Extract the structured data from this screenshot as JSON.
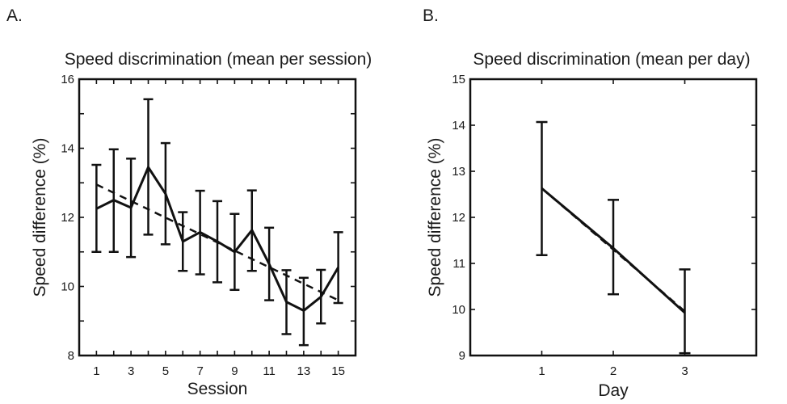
{
  "chart_data": [
    {
      "panel_label": "A.",
      "type": "line",
      "title": "Speed discrimination (mean per session)",
      "xlabel": "Session",
      "ylabel": "Speed difference (%)",
      "xlim": [
        0,
        16
      ],
      "ylim": [
        8,
        16
      ],
      "xticks": [
        1,
        2,
        3,
        4,
        5,
        6,
        7,
        8,
        9,
        10,
        11,
        12,
        13,
        14,
        15
      ],
      "xtick_labels": [
        "1",
        "",
        "3",
        "",
        "5",
        "",
        "7",
        "",
        "9",
        "",
        "11",
        "",
        "13",
        "",
        "15"
      ],
      "yticks": [
        8,
        9,
        10,
        11,
        12,
        13,
        14,
        15,
        16
      ],
      "ytick_labels": [
        "8",
        "",
        "10",
        "",
        "12",
        "",
        "14",
        "",
        "16"
      ],
      "grid": false,
      "series": [
        {
          "style": "solid",
          "x": [
            1,
            2,
            3,
            4,
            5,
            6,
            7,
            8,
            9,
            10,
            11,
            12,
            13,
            14,
            15
          ],
          "y": [
            12.25,
            12.5,
            12.28,
            13.45,
            12.68,
            11.3,
            11.57,
            11.3,
            11.0,
            11.63,
            10.65,
            9.55,
            9.3,
            9.7,
            10.55
          ],
          "err_low": [
            11.0,
            11.0,
            10.85,
            11.5,
            11.22,
            10.45,
            10.35,
            10.12,
            9.9,
            10.45,
            9.6,
            8.62,
            8.3,
            8.93,
            9.52
          ],
          "err_high": [
            13.52,
            13.97,
            13.7,
            15.42,
            14.15,
            12.15,
            12.77,
            12.47,
            12.1,
            12.78,
            11.7,
            10.47,
            10.25,
            10.48,
            11.57
          ]
        },
        {
          "style": "dashed",
          "x": [
            1,
            15
          ],
          "y": [
            12.95,
            9.6
          ]
        }
      ]
    },
    {
      "panel_label": "B.",
      "type": "line",
      "title": "Speed discrimination (mean per day)",
      "xlabel": "Day",
      "ylabel": "Speed difference (%)",
      "xlim": [
        0,
        4
      ],
      "ylim": [
        9,
        15
      ],
      "xticks": [
        1,
        2,
        3
      ],
      "xtick_labels": [
        "1",
        "2",
        "3"
      ],
      "yticks": [
        9,
        10,
        11,
        12,
        13,
        14,
        15
      ],
      "ytick_labels": [
        "9",
        "10",
        "11",
        "12",
        "13",
        "14",
        "15"
      ],
      "grid": false,
      "series": [
        {
          "style": "solid",
          "x": [
            1,
            2,
            3
          ],
          "y": [
            12.63,
            11.33,
            9.93
          ],
          "err_low": [
            11.18,
            10.33,
            9.05
          ],
          "err_high": [
            14.07,
            12.38,
            10.87
          ]
        },
        {
          "style": "dashed",
          "x": [
            1,
            2,
            3
          ],
          "y": [
            12.63,
            11.3,
            9.96
          ]
        }
      ]
    }
  ]
}
